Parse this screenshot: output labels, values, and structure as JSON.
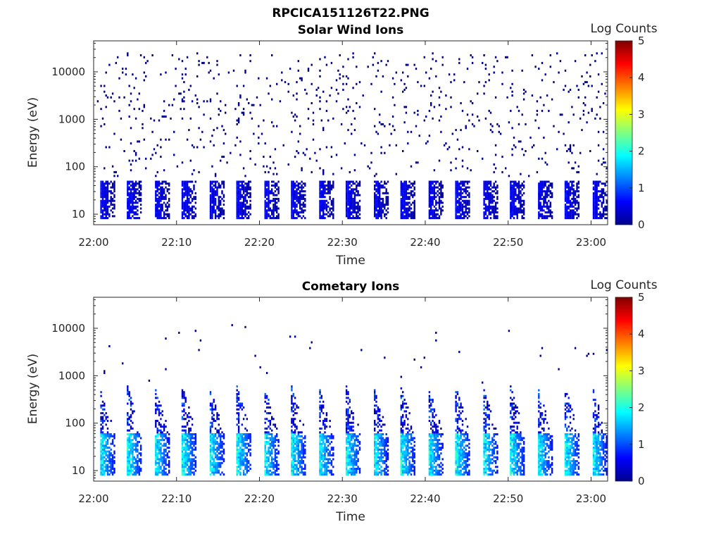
{
  "figure_title": "RPCICA151126T22.PNG",
  "chart_data": [
    {
      "type": "heatmap",
      "title": "Solar Wind Ions",
      "xlabel": "Time",
      "ylabel": "Energy (eV)",
      "x_ticks": [
        "22:00",
        "22:10",
        "22:20",
        "22:30",
        "22:40",
        "22:50",
        "23:00"
      ],
      "y_ticks": [
        "10",
        "100",
        "1000",
        "10000"
      ],
      "y_scale": "log",
      "xlim": [
        "22:00",
        "23:02"
      ],
      "ylim": [
        6,
        45000
      ],
      "colorbar": {
        "label": "Log Counts",
        "ticks": [
          "0",
          "1",
          "2",
          "3",
          "4",
          "5"
        ],
        "range": [
          0,
          5
        ],
        "colormap": "jet"
      },
      "pattern": {
        "sweep_period_min": 3.3,
        "sweep_start_min": 0.7,
        "core_energy_eV": [
          8,
          50
        ],
        "core_log_counts": [
          0.1,
          0.8
        ],
        "sparse_energy_eV": [
          60,
          25000
        ],
        "sparse_log_counts": 0.05
      }
    },
    {
      "type": "heatmap",
      "title": "Cometary Ions",
      "xlabel": "Time",
      "ylabel": "Energy (eV)",
      "x_ticks": [
        "22:00",
        "22:10",
        "22:20",
        "22:30",
        "22:40",
        "22:50",
        "23:00"
      ],
      "y_ticks": [
        "10",
        "100",
        "1000",
        "10000"
      ],
      "y_scale": "log",
      "xlim": [
        "22:00",
        "23:02"
      ],
      "ylim": [
        6,
        45000
      ],
      "colorbar": {
        "label": "Log Counts",
        "ticks": [
          "0",
          "1",
          "2",
          "3",
          "4",
          "5"
        ],
        "range": [
          0,
          5
        ],
        "colormap": "jet"
      },
      "pattern": {
        "sweep_period_min": 3.3,
        "sweep_start_min": 0.7,
        "core_energy_eV": [
          8,
          60
        ],
        "core_log_counts": [
          0.6,
          2.3
        ],
        "tail_energy_eV": [
          60,
          600
        ],
        "sparse_energy_eV": [
          600,
          14000
        ],
        "sparse_log_counts": 0.05
      }
    }
  ]
}
